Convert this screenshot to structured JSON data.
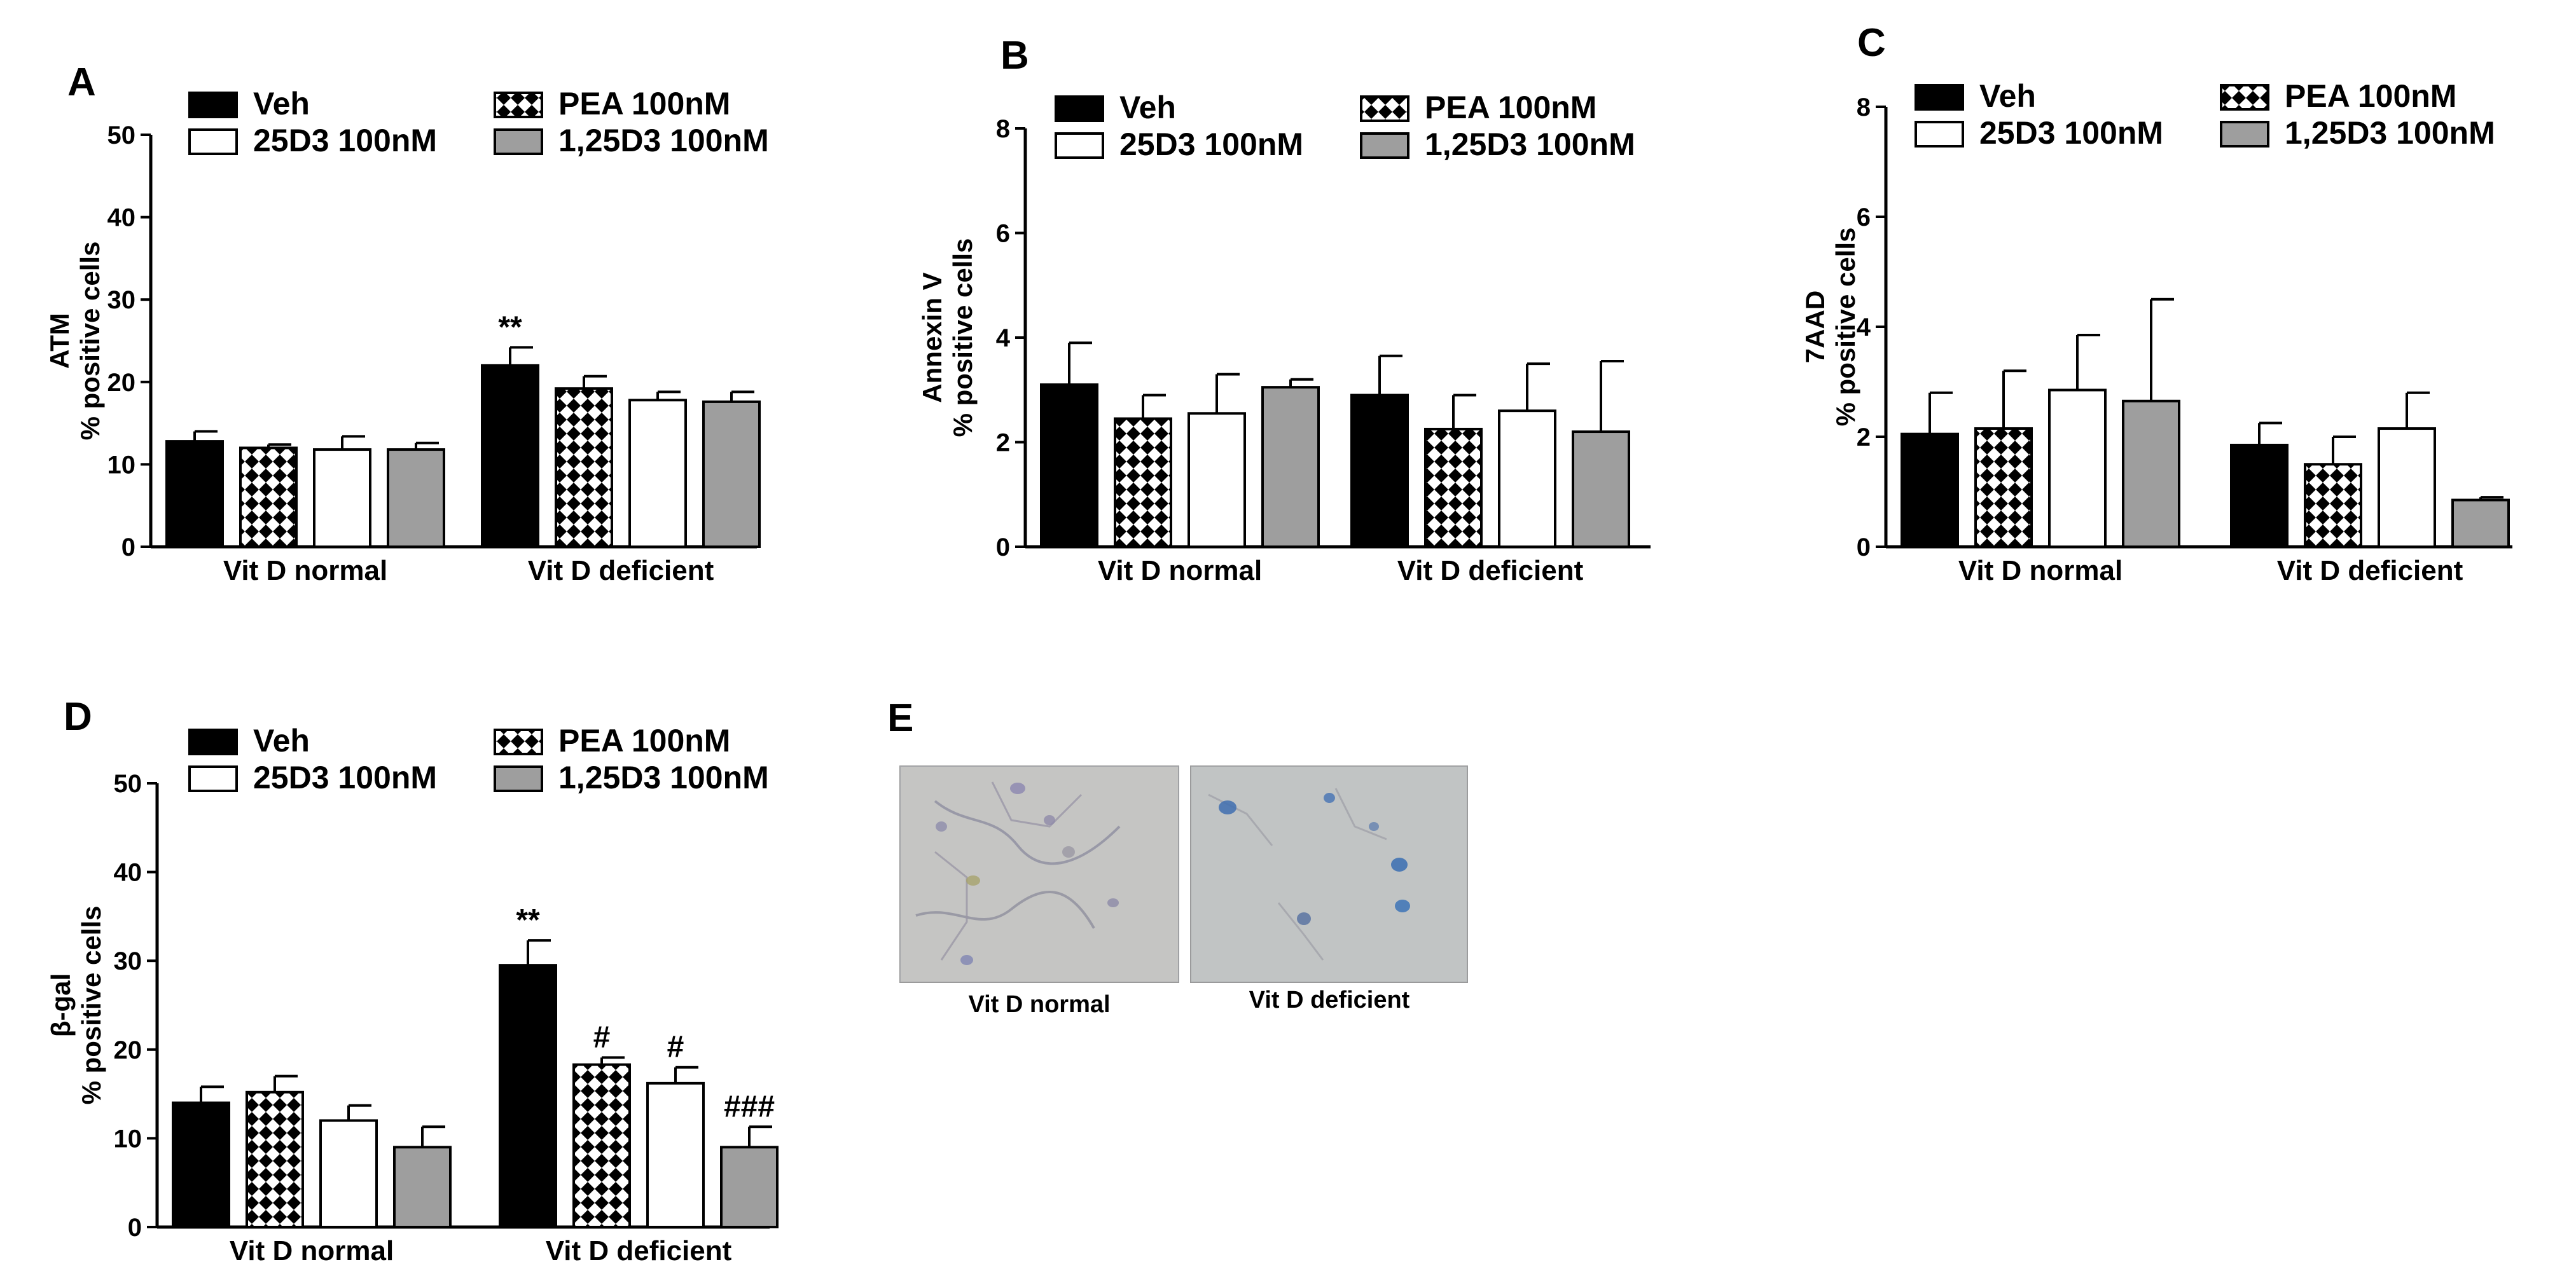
{
  "chart_data": [
    {
      "panel": "A",
      "type": "bar",
      "ylabel": "ATM\n% positive cells",
      "ylim": [
        0,
        50
      ],
      "yticks": [
        0,
        10,
        20,
        30,
        40,
        50
      ],
      "categories": [
        "Vit D normal",
        "Vit D deficient"
      ],
      "series": [
        {
          "name": "Veh",
          "values": [
            12.8,
            22.0
          ],
          "errors": [
            1.2,
            2.2
          ],
          "annotations": [
            "",
            "**"
          ]
        },
        {
          "name": "PEA 100nM",
          "values": [
            12.0,
            19.2
          ],
          "errors": [
            0.4,
            1.5
          ],
          "annotations": [
            "",
            ""
          ]
        },
        {
          "name": "25D3 100nM",
          "values": [
            11.8,
            17.8
          ],
          "errors": [
            1.6,
            1.0
          ],
          "annotations": [
            "",
            ""
          ]
        },
        {
          "name": "1,25D3 100nM",
          "values": [
            11.8,
            17.6
          ],
          "errors": [
            0.8,
            1.2
          ],
          "annotations": [
            "",
            ""
          ]
        }
      ]
    },
    {
      "panel": "B",
      "type": "bar",
      "ylabel": "Annexin V\n% positive cells",
      "ylim": [
        0,
        8
      ],
      "yticks": [
        0,
        2,
        4,
        6,
        8
      ],
      "categories": [
        "Vit D normal",
        "Vit D deficient"
      ],
      "series": [
        {
          "name": "Veh",
          "values": [
            3.1,
            2.9
          ],
          "errors": [
            0.8,
            0.75
          ],
          "annotations": [
            "",
            ""
          ]
        },
        {
          "name": "PEA 100nM",
          "values": [
            2.45,
            2.25
          ],
          "errors": [
            0.45,
            0.65
          ],
          "annotations": [
            "",
            ""
          ]
        },
        {
          "name": "25D3 100nM",
          "values": [
            2.55,
            2.6
          ],
          "errors": [
            0.75,
            0.9
          ],
          "annotations": [
            "",
            ""
          ]
        },
        {
          "name": "1,25D3 100nM",
          "values": [
            3.05,
            2.2
          ],
          "errors": [
            0.15,
            1.35
          ],
          "annotations": [
            "",
            ""
          ]
        }
      ]
    },
    {
      "panel": "C",
      "type": "bar",
      "ylabel": "7AAD\n% positive cells",
      "ylim": [
        0,
        8
      ],
      "yticks": [
        0,
        2,
        4,
        6,
        8
      ],
      "categories": [
        "Vit D normal",
        "Vit D deficient"
      ],
      "series": [
        {
          "name": "Veh",
          "values": [
            2.05,
            1.85
          ],
          "errors": [
            0.75,
            0.4
          ],
          "annotations": [
            "",
            ""
          ]
        },
        {
          "name": "PEA 100nM",
          "values": [
            2.15,
            1.5
          ],
          "errors": [
            1.05,
            0.5
          ],
          "annotations": [
            "",
            ""
          ]
        },
        {
          "name": "25D3 100nM",
          "values": [
            2.85,
            2.15
          ],
          "errors": [
            1.0,
            0.65
          ],
          "annotations": [
            "",
            ""
          ]
        },
        {
          "name": "1,25D3 100nM",
          "values": [
            2.65,
            0.85
          ],
          "errors": [
            1.85,
            0.05
          ],
          "annotations": [
            "",
            ""
          ]
        }
      ]
    },
    {
      "panel": "D",
      "type": "bar",
      "ylabel": "β-gal\n% positive cells",
      "ylim": [
        0,
        50
      ],
      "yticks": [
        0,
        10,
        20,
        30,
        40,
        50
      ],
      "categories": [
        "Vit D normal",
        "Vit D deficient"
      ],
      "series": [
        {
          "name": "Veh",
          "values": [
            14.0,
            29.5
          ],
          "errors": [
            1.8,
            2.8
          ],
          "annotations": [
            "",
            "**"
          ]
        },
        {
          "name": "PEA 100nM",
          "values": [
            15.2,
            18.3
          ],
          "errors": [
            1.8,
            0.8
          ],
          "annotations": [
            "",
            "#"
          ]
        },
        {
          "name": "25D3 100nM",
          "values": [
            12.0,
            16.2
          ],
          "errors": [
            1.7,
            1.8
          ],
          "annotations": [
            "",
            "#"
          ]
        },
        {
          "name": "1,25D3 100nM",
          "values": [
            9.0,
            9.0
          ],
          "errors": [
            2.3,
            2.3
          ],
          "annotations": [
            "",
            "###"
          ]
        }
      ]
    }
  ],
  "series_styles": [
    {
      "name": "Veh",
      "fill": "#000000",
      "pattern": "solid"
    },
    {
      "name": "PEA 100nM",
      "fill": "#ffffff",
      "pattern": "crosshatch"
    },
    {
      "name": "25D3 100nM",
      "fill": "#ffffff",
      "pattern": "solid"
    },
    {
      "name": "1,25D3 100nM",
      "fill": "#9e9e9e",
      "pattern": "solid"
    }
  ],
  "panels": {
    "A": "A",
    "B": "B",
    "C": "C",
    "D": "D",
    "E": "E"
  },
  "micrographs": [
    {
      "caption": "Vit D normal",
      "tint": "#c9c8bf"
    },
    {
      "caption": "Vit D deficient",
      "tint": "#c4c6c2"
    }
  ]
}
